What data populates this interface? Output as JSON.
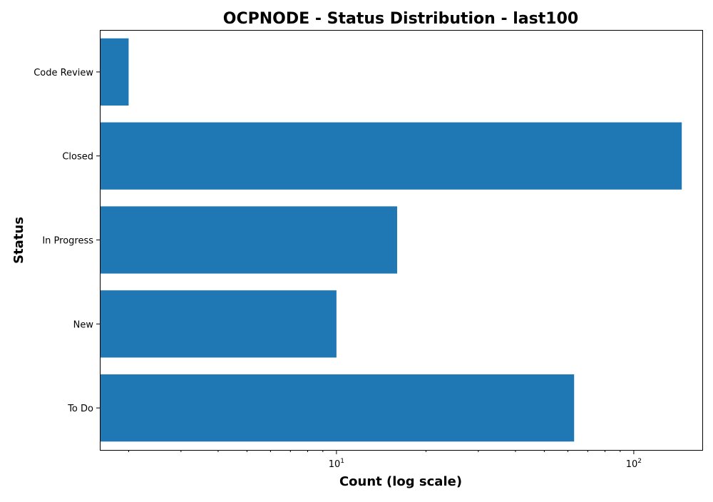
{
  "chart_data": {
    "type": "bar",
    "orientation": "horizontal",
    "title": "OCPNODE - Status Distribution - last100",
    "xlabel": "Count (log scale)",
    "ylabel": "Status",
    "xscale": "log",
    "xlim": [
      1.6,
      170
    ],
    "categories": [
      "Code Review",
      "Closed",
      "In Progress",
      "New",
      "To Do"
    ],
    "values": [
      2,
      145,
      16,
      10,
      63
    ],
    "x_major_ticks": [
      {
        "value": 10,
        "base": "10",
        "exp": "1"
      },
      {
        "value": 100,
        "base": "10",
        "exp": "2"
      }
    ],
    "bar_color": "#1f77b4",
    "grid": false,
    "legend": "none"
  }
}
